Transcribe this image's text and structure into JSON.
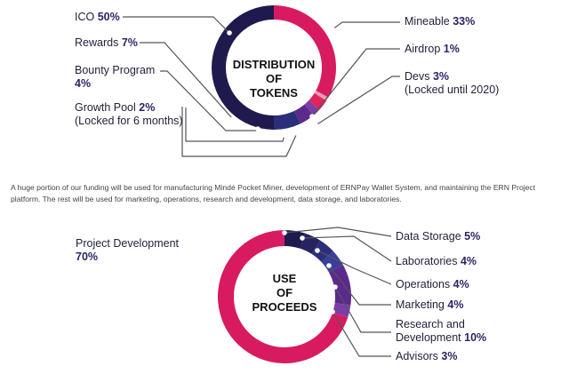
{
  "colors": {
    "crimson": "#d81b60",
    "navy": "#1e1a4e",
    "indigo": "#2b2f7a",
    "purple": "#5b2a8c",
    "violet": "#7a3fa6",
    "pink": "#ef9ab0",
    "blue": "#3b3f9a",
    "text": "#1f1f3a",
    "leader": "#555555"
  },
  "paragraph": "A huge portion of our funding will be used for manufacturing Mindé Pocket Miner, development of ERNPay Wallet System, and maintaining the ERN Project platform. The rest will be used for marketing, operations, research and development, data storage, and laboratories.",
  "chart_data": [
    {
      "type": "pie",
      "title_lines": [
        "DISTRIBUTION",
        "OF",
        "TOKENS"
      ],
      "slices": [
        {
          "label": "Mineable",
          "value": 33,
          "value_label": "33%",
          "color": "#d81b60"
        },
        {
          "label": "Airdrop",
          "value": 1,
          "value_label": "1%",
          "color": "#ef9ab0"
        },
        {
          "label": "Devs",
          "value": 3,
          "value_label": "3%",
          "note": "(Locked until 2020)",
          "color": "#e0245e"
        },
        {
          "label": "Growth Pool",
          "value": 2,
          "value_label": "2%",
          "note": "(Locked for 6 months)",
          "color": "#7a3fa6"
        },
        {
          "label": "Bounty Program",
          "value": 4,
          "value_label": "4%",
          "color": "#5b2a8c"
        },
        {
          "label": "Rewards",
          "value": 7,
          "value_label": "7%",
          "color": "#2b2f7a"
        },
        {
          "label": "ICO",
          "value": 50,
          "value_label": "50%",
          "color": "#1e1a4e"
        }
      ]
    },
    {
      "type": "pie",
      "title_lines": [
        "USE",
        "OF",
        "PROCEEDS"
      ],
      "slices": [
        {
          "label": "Data Storage",
          "value": 5,
          "value_label": "5%",
          "color": "#1e1a4e"
        },
        {
          "label": "Laboratories",
          "value": 4,
          "value_label": "4%",
          "color": "#26235f"
        },
        {
          "label": "Operations",
          "value": 4,
          "value_label": "4%",
          "color": "#2b2f7a"
        },
        {
          "label": "Marketing",
          "value": 4,
          "value_label": "4%",
          "color": "#3b3f9a"
        },
        {
          "label": "Research and Development",
          "value": 10,
          "value_label": "10%",
          "color": "#5b2a8c"
        },
        {
          "label": "Advisors",
          "value": 3,
          "value_label": "3%",
          "color": "#7a3fa6"
        },
        {
          "label": "Project Development",
          "value": 70,
          "value_label": "70%",
          "color": "#d81b60"
        }
      ]
    }
  ],
  "labels1": {
    "ico": {
      "name": "ICO",
      "pct": "50%"
    },
    "rewards": {
      "name": "Rewards",
      "pct": "7%"
    },
    "bounty": {
      "name": "Bounty Program",
      "pct": "4%"
    },
    "growth": {
      "name": "Growth Pool",
      "pct": "2%",
      "note": "(Locked for 6 months)"
    },
    "mineable": {
      "name": "Mineable",
      "pct": "33%"
    },
    "airdrop": {
      "name": "Airdrop",
      "pct": "1%"
    },
    "devs": {
      "name": "Devs",
      "pct": "3%",
      "note": "(Locked until 2020)"
    }
  },
  "labels2": {
    "project": {
      "name": "Project Development",
      "pct": "70%"
    },
    "storage": {
      "name": "Data Storage",
      "pct": "5%"
    },
    "labs": {
      "name": "Laboratories",
      "pct": "4%"
    },
    "ops": {
      "name": "Operations",
      "pct": "4%"
    },
    "marketing": {
      "name": "Marketing",
      "pct": "4%"
    },
    "research": {
      "name": "Research and",
      "name2": "Development",
      "pct": "10%"
    },
    "advisors": {
      "name": "Advisors",
      "pct": "3%"
    }
  }
}
